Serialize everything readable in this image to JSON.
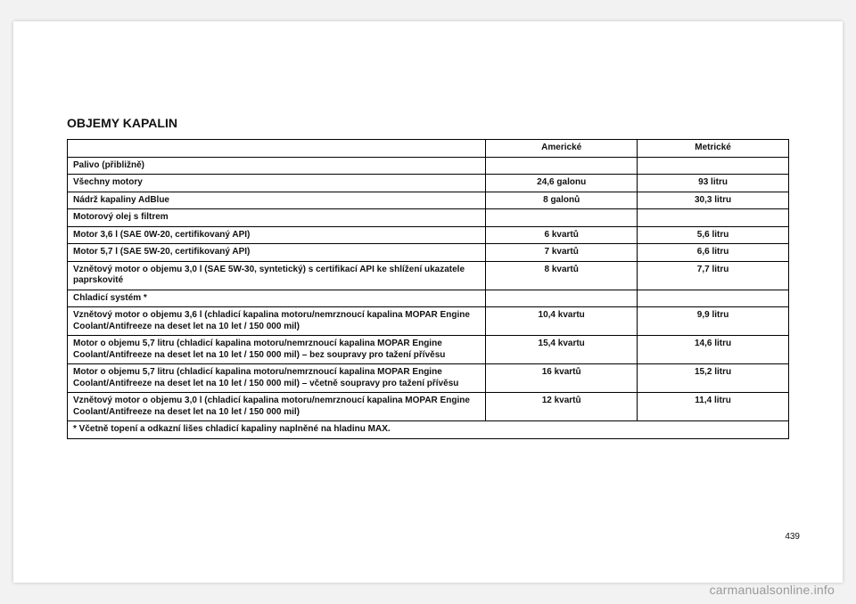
{
  "title": "OBJEMY KAPALIN",
  "columns": {
    "a": "Americké",
    "b": "Metrické"
  },
  "rows": [
    {
      "label": "Palivo (přibližně)",
      "a": "",
      "b": "",
      "section": true
    },
    {
      "label": "Všechny motory",
      "a": "24,6 galonu",
      "b": "93 litru"
    },
    {
      "label": "Nádrž kapaliny AdBlue",
      "a": "8 galonů",
      "b": "30,3 litru"
    },
    {
      "label": "Motorový olej s filtrem",
      "a": "",
      "b": "",
      "section": true
    },
    {
      "label": "Motor 3,6 l (SAE 0W-20, certifikovaný API)",
      "a": "6 kvartů",
      "b": "5,6 litru"
    },
    {
      "label": "Motor 5,7 l (SAE 5W-20, certifikovaný API)",
      "a": "7 kvartů",
      "b": "6,6 litru"
    },
    {
      "label": "Vznětový motor o objemu 3,0 l (SAE 5W-30, syntetický) s certifikací API ke shlížení ukazatele paprskovité",
      "a": "8 kvartů",
      "b": "7,7 litru"
    },
    {
      "label": "Chladicí systém *",
      "a": "",
      "b": "",
      "section": true
    },
    {
      "label": "Vznětový motor o objemu 3,6 l (chladicí kapalina motoru/nemrznoucí kapalina MOPAR Engine Coolant/Antifreeze na deset let na 10 let / 150 000 mil)",
      "a": "10,4 kvartu",
      "b": "9,9 litru"
    },
    {
      "label": "Motor o objemu 5,7 litru (chladicí kapalina motoru/nemrznoucí kapalina MOPAR Engine Coolant/Antifreeze na deset let na 10 let / 150 000 mil) – bez soupravy pro tažení přívěsu",
      "a": "15,4 kvartu",
      "b": "14,6 litru"
    },
    {
      "label": "Motor o objemu 5,7 litru (chladicí kapalina motoru/nemrznoucí kapalina MOPAR Engine Coolant/Antifreeze na deset let na 10 let / 150 000 mil) – včetně soupravy pro tažení přívěsu",
      "a": "16 kvartů",
      "b": "15,2 litru"
    },
    {
      "label": "Vznětový motor o objemu 3,0 l (chladicí kapalina motoru/nemrznoucí kapalina MOPAR Engine Coolant/Antifreeze na deset let na 10 let / 150 000 mil)",
      "a": "12 kvartů",
      "b": "11,4 litru"
    }
  ],
  "footnote": "* Včetně topení a odkazní lišes chladicí kapaliny naplněné na hladinu MAX.",
  "page_number": "439",
  "watermark": "carmanualsonline.info"
}
